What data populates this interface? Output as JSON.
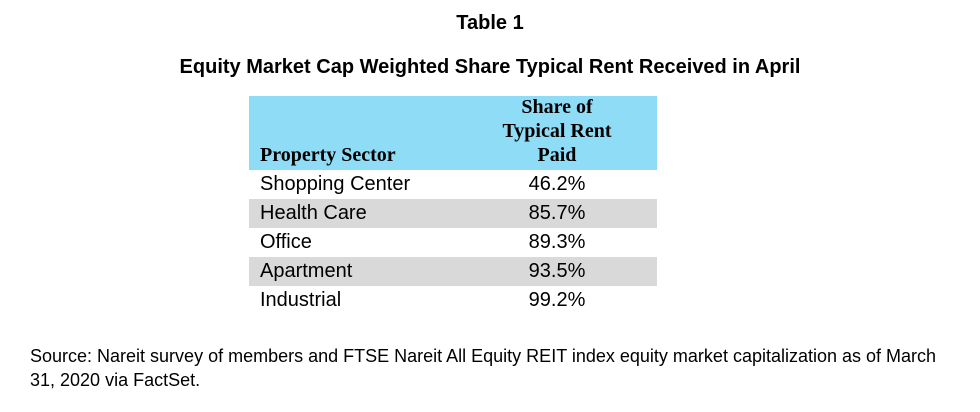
{
  "document": {
    "table_label": "Table 1",
    "title": "Equity Market Cap Weighted Share Typical Rent Received in April",
    "source_note": "Source: Nareit survey of members and FTSE Nareit All Equity REIT index equity market capitalization as of March 31, 2020 via FactSet."
  },
  "table": {
    "header_color": "#8fdcf6",
    "stripe_color": "#d9d9d9",
    "columns": {
      "sector": "Property Sector",
      "share": "Share of\nTypical Rent\nPaid"
    },
    "rows": [
      {
        "sector": "Shopping Center",
        "share": "46.2%"
      },
      {
        "sector": "Health Care",
        "share": "85.7%"
      },
      {
        "sector": "Office",
        "share": "89.3%"
      },
      {
        "sector": "Apartment",
        "share": "93.5%"
      },
      {
        "sector": "Industrial",
        "share": "99.2%"
      }
    ]
  }
}
